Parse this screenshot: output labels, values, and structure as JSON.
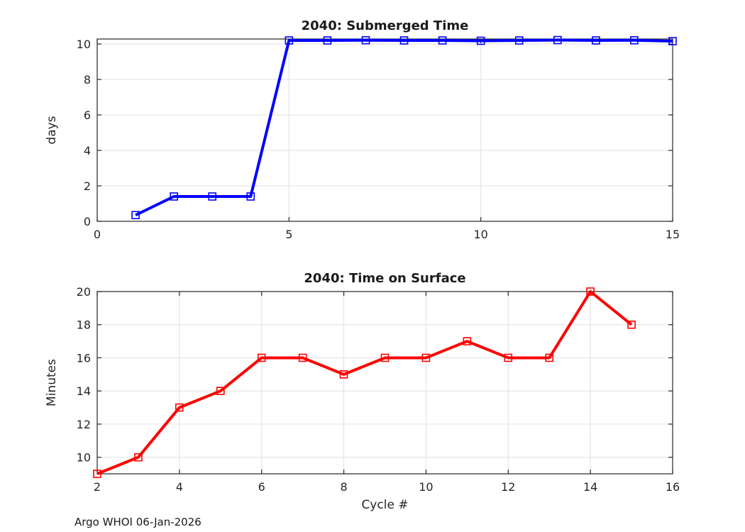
{
  "figure": {
    "footer_credit": "Argo WHOI 06-Jan-2026"
  },
  "colors": {
    "submerged_series": "#0000ff",
    "surface_series": "#ff0000",
    "axis": "#262626",
    "grid": "#e0e0e0"
  },
  "chart_data": [
    {
      "type": "line",
      "title": "2040: Submerged Time",
      "xlabel": "",
      "ylabel": "days",
      "xlim": [
        0,
        15
      ],
      "ylim": [
        0,
        10.28
      ],
      "xticks": [
        0,
        5,
        10,
        15
      ],
      "yticks": [
        0,
        2,
        4,
        6,
        8,
        10
      ],
      "grid": true,
      "legend": "none",
      "marker": "open-square",
      "series": [
        {
          "name": "submerged-time",
          "color": "#0000ff",
          "x": [
            1,
            2,
            3,
            4,
            5,
            6,
            7,
            8,
            9,
            10,
            11,
            12,
            13,
            14,
            15
          ],
          "y": [
            0.35,
            1.4,
            1.4,
            1.4,
            10.2,
            10.2,
            10.21,
            10.2,
            10.2,
            10.18,
            10.2,
            10.22,
            10.2,
            10.21,
            10.16
          ]
        }
      ]
    },
    {
      "type": "line",
      "title": "2040: Time on Surface",
      "xlabel": "Cycle #",
      "ylabel": "Minutes",
      "xlim": [
        2,
        16
      ],
      "ylim": [
        9,
        20
      ],
      "xticks": [
        2,
        4,
        6,
        8,
        10,
        12,
        14,
        16
      ],
      "yticks": [
        10,
        12,
        14,
        16,
        18,
        20
      ],
      "grid": true,
      "legend": "none",
      "marker": "open-square",
      "series": [
        {
          "name": "time-on-surface",
          "color": "#ff0000",
          "x": [
            2,
            3,
            4,
            5,
            6,
            7,
            8,
            9,
            10,
            11,
            12,
            13,
            14,
            15
          ],
          "y": [
            9,
            10,
            13,
            14,
            16,
            16,
            15,
            16,
            16,
            17,
            16,
            16,
            20,
            18
          ]
        }
      ]
    }
  ]
}
